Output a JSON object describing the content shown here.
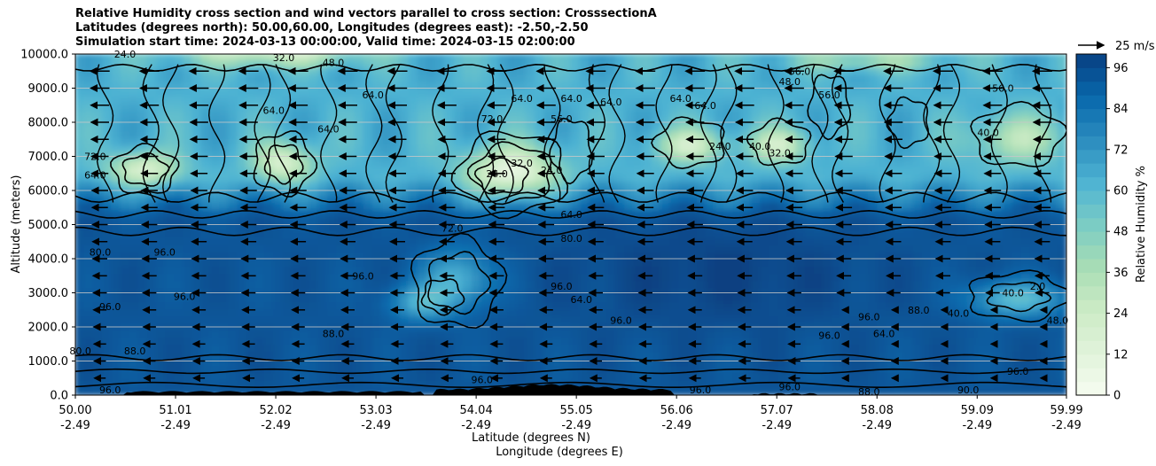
{
  "chart_data": {
    "type": "heatmap",
    "title_lines": [
      "Relative Humidity cross section and wind vectors parallel to cross section: CrosssectionA",
      "Latitudes (degrees north): 50.00,60.00, Longitudes (degrees east): -2.50,-2.50",
      "Simulation start time: 2024-03-13 00:00:00, Valid time: 2024-03-15 02:00:00"
    ],
    "ylabel": "Altitude (meters)",
    "xlabel_lat": "Latitude (degrees N)",
    "xlabel_lon": "Longitude (degrees E)",
    "ylim": [
      0,
      10000
    ],
    "xlim": [
      50.0,
      59.99
    ],
    "y_ticks": [
      "0.0",
      "1000.0",
      "2000.0",
      "3000.0",
      "4000.0",
      "5000.0",
      "6000.0",
      "7000.0",
      "8000.0",
      "9000.0",
      "10000.0"
    ],
    "y_tick_values": [
      0,
      1000,
      2000,
      3000,
      4000,
      5000,
      6000,
      7000,
      8000,
      9000,
      10000
    ],
    "x_ticks": [
      {
        "lat": "50.00",
        "lon": "-2.49",
        "value": 50.0
      },
      {
        "lat": "51.01",
        "lon": "-2.49",
        "value": 51.01
      },
      {
        "lat": "52.02",
        "lon": "-2.49",
        "value": 52.02
      },
      {
        "lat": "53.03",
        "lon": "-2.49",
        "value": 53.03
      },
      {
        "lat": "54.04",
        "lon": "-2.49",
        "value": 54.04
      },
      {
        "lat": "55.05",
        "lon": "-2.49",
        "value": 55.05
      },
      {
        "lat": "56.06",
        "lon": "-2.49",
        "value": 56.06
      },
      {
        "lat": "57.07",
        "lon": "-2.49",
        "value": 57.07
      },
      {
        "lat": "58.08",
        "lon": "-2.49",
        "value": 58.08
      },
      {
        "lat": "59.09",
        "lon": "-2.49",
        "value": 59.09
      },
      {
        "lat": "59.99",
        "lon": "-2.49",
        "value": 59.99
      }
    ],
    "colorbar": {
      "label": "Relative Humidity %",
      "range": [
        0,
        100
      ],
      "ticks": [
        "0",
        "12",
        "24",
        "36",
        "48",
        "60",
        "72",
        "84",
        "96"
      ],
      "tick_values": [
        0,
        12,
        24,
        36,
        48,
        60,
        72,
        84,
        96
      ],
      "colormap": "GnBu",
      "colors": [
        "#f7fcf0",
        "#e0f3db",
        "#ccebc5",
        "#a8ddb5",
        "#7bccc4",
        "#4eb3d3",
        "#2b8cbe",
        "#0868ac",
        "#084081"
      ]
    },
    "wind_key": {
      "label": "25 m/s"
    },
    "wind_direction": "southward (negative along section) aloft",
    "contour_labels": [
      {
        "text": "96.0",
        "x": 50.9,
        "y": 4200
      },
      {
        "text": "80.0",
        "x": 50.25,
        "y": 4200
      },
      {
        "text": "72.0",
        "x": 50.2,
        "y": 7000
      },
      {
        "text": "64.0",
        "x": 50.2,
        "y": 6450
      },
      {
        "text": "24.0",
        "x": 50.5,
        "y": 10000
      },
      {
        "text": "32.0",
        "x": 52.1,
        "y": 9900
      },
      {
        "text": "48.0",
        "x": 52.6,
        "y": 9750
      },
      {
        "text": "64.0",
        "x": 52.0,
        "y": 8350
      },
      {
        "text": "64.0",
        "x": 52.55,
        "y": 7800
      },
      {
        "text": "64.0",
        "x": 53.0,
        "y": 8800
      },
      {
        "text": "96.0",
        "x": 51.1,
        "y": 2900
      },
      {
        "text": "96.0",
        "x": 50.35,
        "y": 2600
      },
      {
        "text": "88.0",
        "x": 50.6,
        "y": 1300
      },
      {
        "text": "80.0",
        "x": 50.05,
        "y": 1300
      },
      {
        "text": "96.0",
        "x": 50.35,
        "y": 150
      },
      {
        "text": "88.0",
        "x": 52.6,
        "y": 1800
      },
      {
        "text": "96.0",
        "x": 52.9,
        "y": 3500
      },
      {
        "text": "72.0",
        "x": 54.2,
        "y": 8100
      },
      {
        "text": "64.0",
        "x": 54.5,
        "y": 8700
      },
      {
        "text": "56.0",
        "x": 54.9,
        "y": 8100
      },
      {
        "text": "64.0",
        "x": 55.0,
        "y": 8700
      },
      {
        "text": "64.0",
        "x": 55.4,
        "y": 8600
      },
      {
        "text": "24.0",
        "x": 54.25,
        "y": 6500
      },
      {
        "text": "32.0",
        "x": 54.5,
        "y": 6800
      },
      {
        "text": "24.0",
        "x": 54.8,
        "y": 6600
      },
      {
        "text": "64.0",
        "x": 55.0,
        "y": 5300
      },
      {
        "text": "80.0",
        "x": 55.0,
        "y": 4600
      },
      {
        "text": "72.0",
        "x": 53.8,
        "y": 4900
      },
      {
        "text": "96.0",
        "x": 54.9,
        "y": 3200
      },
      {
        "text": "64.0",
        "x": 55.1,
        "y": 2800
      },
      {
        "text": "96.0",
        "x": 55.5,
        "y": 2200
      },
      {
        "text": "96.0",
        "x": 54.1,
        "y": 450
      },
      {
        "text": "96.0",
        "x": 56.3,
        "y": 150
      },
      {
        "text": "64.0",
        "x": 56.1,
        "y": 8700
      },
      {
        "text": "64.0",
        "x": 56.35,
        "y": 8500
      },
      {
        "text": "24.0",
        "x": 56.5,
        "y": 7300
      },
      {
        "text": "48.0",
        "x": 57.2,
        "y": 9200
      },
      {
        "text": "56.0",
        "x": 57.3,
        "y": 9500
      },
      {
        "text": "56.0",
        "x": 57.6,
        "y": 8800
      },
      {
        "text": "32.0",
        "x": 57.1,
        "y": 7100
      },
      {
        "text": "40.0",
        "x": 56.9,
        "y": 7300
      },
      {
        "text": "96.0",
        "x": 57.6,
        "y": 1750
      },
      {
        "text": "64.0",
        "x": 58.15,
        "y": 1800
      },
      {
        "text": "96.0",
        "x": 58.0,
        "y": 2300
      },
      {
        "text": "88.0",
        "x": 58.5,
        "y": 2500
      },
      {
        "text": "40.0",
        "x": 58.9,
        "y": 2400
      },
      {
        "text": "40.0",
        "x": 59.45,
        "y": 3000
      },
      {
        "text": "2.0",
        "x": 59.7,
        "y": 3200
      },
      {
        "text": "48.0",
        "x": 59.9,
        "y": 2200
      },
      {
        "text": "56.0",
        "x": 59.35,
        "y": 9000
      },
      {
        "text": "40.0",
        "x": 59.2,
        "y": 7700
      },
      {
        "text": "96.0",
        "x": 59.5,
        "y": 700
      },
      {
        "text": "90.0",
        "x": 59.0,
        "y": 150
      },
      {
        "text": "88.0",
        "x": 58.0,
        "y": 100
      },
      {
        "text": "96.0",
        "x": 57.2,
        "y": 250
      }
    ]
  }
}
